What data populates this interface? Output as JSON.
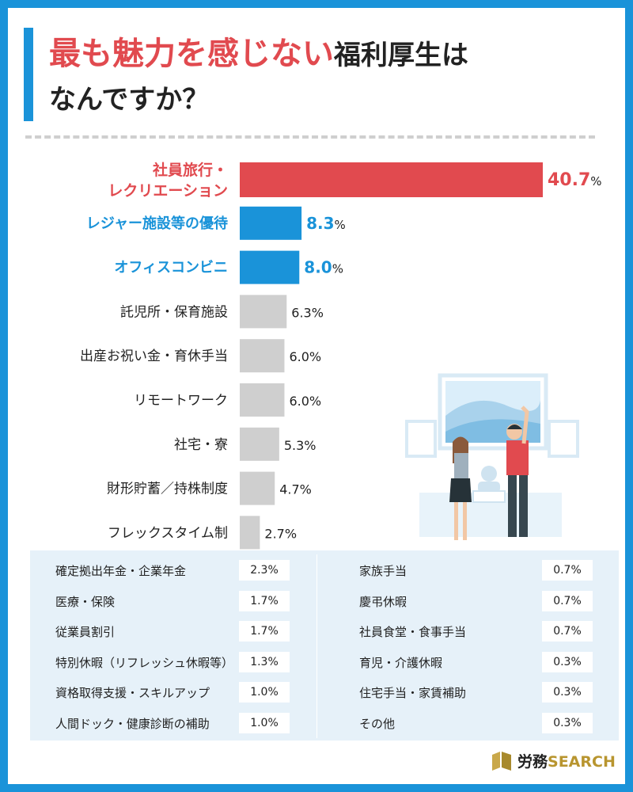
{
  "title": {
    "highlight": "最も魅力を感じない",
    "rest": "福利厚生は",
    "line2": "なんですか？"
  },
  "colors": {
    "accent_red": "#e14a4f",
    "accent_blue": "#1a93d9",
    "bar_gray": "#cfcfcf"
  },
  "chart_data": {
    "type": "bar",
    "orientation": "horizontal",
    "title": "最も魅力を感じない福利厚生はなんですか？",
    "unit": "%",
    "categories": [
      [
        "社員旅行・",
        "レクリエーション"
      ],
      [
        "レジャー施設等の優待"
      ],
      [
        "オフィスコンビニ"
      ],
      [
        "託児所・保育施設"
      ],
      [
        "出産お祝い金・育休手当"
      ],
      [
        "リモートワーク"
      ],
      [
        "社宅・寮"
      ],
      [
        "財形貯蓄／持株制度"
      ],
      [
        "フレックスタイム制"
      ]
    ],
    "values": [
      40.7,
      8.3,
      8.0,
      6.3,
      6.0,
      6.0,
      5.3,
      4.7,
      2.7
    ],
    "value_labels": [
      "40.7",
      "8.3",
      "8.0",
      "6.3%",
      "6.0%",
      "6.0%",
      "5.3%",
      "4.7%",
      "2.7%"
    ],
    "styles": [
      "hi",
      "bl",
      "bl",
      "",
      "",
      "",
      "",
      "",
      ""
    ],
    "xlim": [
      0,
      40.7
    ]
  },
  "table": {
    "left": [
      {
        "label": "確定拠出年金・企業年金",
        "value": "2.3%"
      },
      {
        "label": "医療・保険",
        "value": "1.7%"
      },
      {
        "label": "従業員割引",
        "value": "1.7%"
      },
      {
        "label": "特別休暇（リフレッシュ休暇等）",
        "value": "1.3%"
      },
      {
        "label": "資格取得支援・スキルアップ",
        "value": "1.0%"
      },
      {
        "label": "人間ドック・健康診断の補助",
        "value": "1.0%"
      }
    ],
    "right": [
      {
        "label": "家族手当",
        "value": "0.7%"
      },
      {
        "label": "慶弔休暇",
        "value": "0.7%"
      },
      {
        "label": "社員食堂・食事手当",
        "value": "0.7%"
      },
      {
        "label": "育児・介護休暇",
        "value": "0.3%"
      },
      {
        "label": "住宅手当・家賃補助",
        "value": "0.3%"
      },
      {
        "label": "その他",
        "value": "0.3%"
      }
    ]
  },
  "logo": {
    "jp": "労務",
    "en": "SEARCH"
  }
}
